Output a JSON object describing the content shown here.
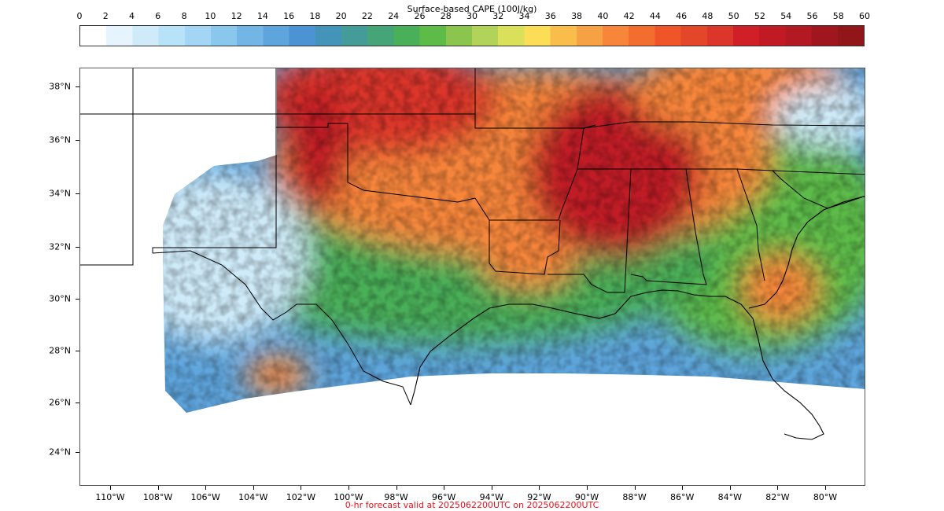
{
  "colorbar": {
    "title": "Surface-based CAPE (100J/kg)",
    "ticks": [
      "0",
      "2",
      "4",
      "6",
      "8",
      "10",
      "12",
      "14",
      "16",
      "18",
      "20",
      "22",
      "24",
      "26",
      "28",
      "30",
      "32",
      "34",
      "36",
      "38",
      "40",
      "42",
      "44",
      "46",
      "48",
      "50",
      "52",
      "54",
      "56",
      "58",
      "60"
    ],
    "colors": [
      "#ffffff",
      "#e6f5fd",
      "#cfebf9",
      "#b8e2f7",
      "#a3d6f4",
      "#8ac7ec",
      "#71b6e4",
      "#5ea5dd",
      "#4b93d2",
      "#4494b9",
      "#449b98",
      "#46a479",
      "#4aaf59",
      "#5dbc48",
      "#8cc54d",
      "#b1d35a",
      "#dbe05b",
      "#fbdd56",
      "#f8bd4a",
      "#f6a143",
      "#f7863a",
      "#f36d2e",
      "#ef5528",
      "#e44629",
      "#dc3529",
      "#d11f28",
      "#c11a25",
      "#b21922",
      "#a0161e",
      "#901619"
    ]
  },
  "map": {
    "lat_labels": [
      "38°N",
      "36°N",
      "34°N",
      "32°N",
      "30°N",
      "28°N",
      "26°N",
      "24°N"
    ],
    "lon_labels": [
      "110°W",
      "108°W",
      "106°W",
      "104°W",
      "102°W",
      "100°W",
      "98°W",
      "96°W",
      "94°W",
      "92°W",
      "90°W",
      "88°W",
      "86°W",
      "84°W",
      "82°W",
      "80°W"
    ],
    "regions": [
      {
        "name": "west-texas-low-cape",
        "color": "#cfebf9"
      },
      {
        "name": "oklahoma-kansas-high-cape",
        "color": "#dc3529"
      },
      {
        "name": "arkansas-mississippi-high-cape",
        "color": "#c11a25"
      },
      {
        "name": "central-south-moderate-cape",
        "color": "#f7863a"
      },
      {
        "name": "gulf-coast-moderate-cape",
        "color": "#4aaf59"
      },
      {
        "name": "gulf-of-mexico-low-cape",
        "color": "#5ea5dd"
      },
      {
        "name": "southeast-moderate-cape",
        "color": "#5dbc48"
      }
    ]
  },
  "footer": {
    "note": "0-hr forecast valid at 2025062200UTC on 2025062200UTC"
  }
}
